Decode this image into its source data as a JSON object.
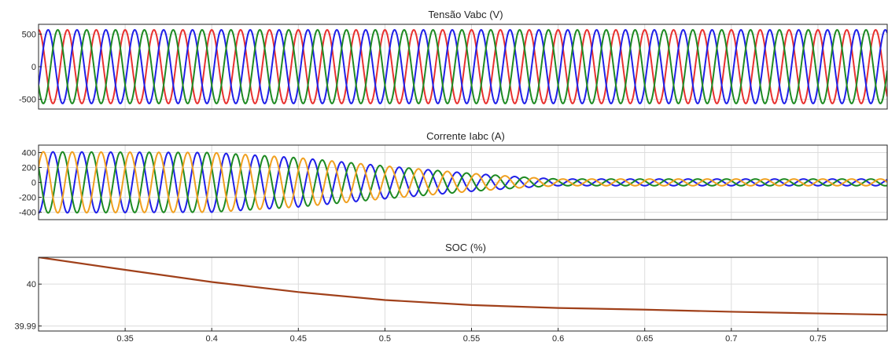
{
  "chart_data": [
    {
      "type": "line",
      "title": "Tensão Vabc (V)",
      "xlim": [
        0.3,
        0.79
      ],
      "ylim": [
        -650,
        650
      ],
      "yticks": [
        500,
        0,
        -500
      ],
      "ytick_labels": [
        "500",
        "0",
        "-500"
      ],
      "grid": true,
      "series": [
        {
          "color": "#e8312f",
          "frequency_hz": 60,
          "phase_deg": 90,
          "amplitude": [
            [
              0.3,
              565
            ],
            [
              0.79,
              565
            ]
          ]
        },
        {
          "color": "#1f1fe8",
          "frequency_hz": 60,
          "phase_deg": -30,
          "amplitude": [
            [
              0.3,
              565
            ],
            [
              0.79,
              565
            ]
          ]
        },
        {
          "color": "#1e8a22",
          "frequency_hz": 60,
          "phase_deg": 210,
          "amplitude": [
            [
              0.3,
              565
            ],
            [
              0.79,
              565
            ]
          ]
        }
      ]
    },
    {
      "type": "line",
      "title": "Corrente Iabc (A)",
      "xlim": [
        0.3,
        0.79
      ],
      "ylim": [
        -500,
        500
      ],
      "yticks": [
        400,
        200,
        0,
        -200,
        -400
      ],
      "ytick_labels": [
        "400",
        "200",
        "0",
        "-200",
        "-400"
      ],
      "grid": true,
      "series": [
        {
          "color": "#1f1fe8",
          "frequency_hz": 60,
          "phase_deg": -90,
          "amplitude": [
            [
              0.3,
              410
            ],
            [
              0.4,
              400
            ],
            [
              0.45,
              330
            ],
            [
              0.5,
              220
            ],
            [
              0.55,
              120
            ],
            [
              0.58,
              70
            ],
            [
              0.6,
              45
            ],
            [
              0.79,
              45
            ]
          ]
        },
        {
          "color": "#1e8a22",
          "frequency_hz": 60,
          "phase_deg": 150,
          "amplitude": [
            [
              0.3,
              410
            ],
            [
              0.4,
              400
            ],
            [
              0.45,
              330
            ],
            [
              0.5,
              220
            ],
            [
              0.55,
              120
            ],
            [
              0.58,
              70
            ],
            [
              0.6,
              45
            ],
            [
              0.79,
              45
            ]
          ]
        },
        {
          "color": "#f0a020",
          "frequency_hz": 60,
          "phase_deg": 30,
          "amplitude": [
            [
              0.3,
              410
            ],
            [
              0.4,
              400
            ],
            [
              0.45,
              330
            ],
            [
              0.5,
              220
            ],
            [
              0.55,
              120
            ],
            [
              0.58,
              70
            ],
            [
              0.6,
              45
            ],
            [
              0.79,
              45
            ]
          ]
        }
      ]
    },
    {
      "type": "line",
      "title": "SOC (%)",
      "xlim": [
        0.3,
        0.79
      ],
      "ylim": [
        39.9888,
        40.0064
      ],
      "yticks": [
        40,
        39.99
      ],
      "ytick_labels": [
        "40",
        "39.99"
      ],
      "xticks": [
        0.35,
        0.4,
        0.45,
        0.5,
        0.55,
        0.6,
        0.65,
        0.7,
        0.75
      ],
      "xtick_labels": [
        "0.35",
        "0.4",
        "0.45",
        "0.5",
        "0.55",
        "0.6",
        "0.65",
        "0.7",
        "0.75"
      ],
      "grid": true,
      "series": [
        {
          "color": "#a0401a",
          "x": [
            0.3,
            0.35,
            0.4,
            0.45,
            0.5,
            0.55,
            0.6,
            0.65,
            0.7,
            0.75,
            0.79
          ],
          "y": [
            40.0064,
            40.0034,
            40.0005,
            39.9981,
            39.9962,
            39.995,
            39.9943,
            39.9939,
            39.9934,
            39.993,
            39.9927
          ]
        }
      ]
    }
  ]
}
